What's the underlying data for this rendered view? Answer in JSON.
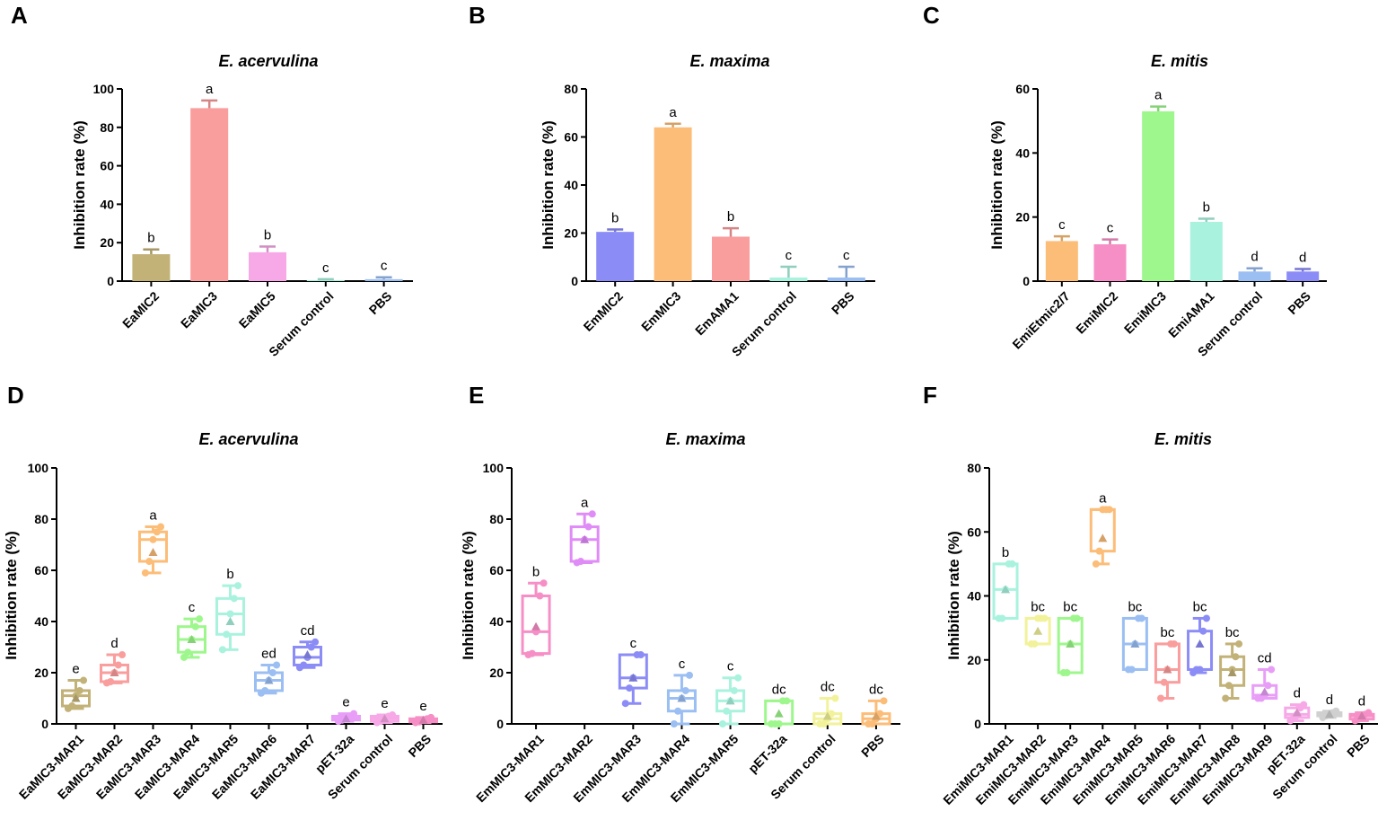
{
  "chart_data": [
    {
      "panel": "A",
      "type": "bar",
      "title": "E. acervulina",
      "ylabel": "Inhibition rate (%)",
      "ylim": [
        0,
        100
      ],
      "yticks": [
        0,
        20,
        40,
        60,
        80,
        100
      ],
      "categories": [
        "EaMIC2",
        "EaMIC3",
        "EaMIC5",
        "Serum control",
        "PBS"
      ],
      "values": [
        14,
        90,
        15,
        0.5,
        1
      ],
      "errors": [
        2.5,
        4,
        3,
        0.5,
        1
      ],
      "letters": [
        "b",
        "a",
        "b",
        "c",
        "c"
      ],
      "colors": [
        "#c2b278",
        "#fa9d9d",
        "#f7a8e6",
        "#a9f2de",
        "#9bbff2"
      ]
    },
    {
      "panel": "B",
      "type": "bar",
      "title": "E. maxima",
      "ylabel": "Inhibition rate (%)",
      "ylim": [
        0,
        80
      ],
      "yticks": [
        0,
        20,
        40,
        60,
        80
      ],
      "categories": [
        "EmMIC2",
        "EmMIC3",
        "EmAMA1",
        "Serum control",
        "PBS"
      ],
      "values": [
        20.5,
        64,
        18.5,
        1.5,
        1.5
      ],
      "errors": [
        1,
        1.5,
        3.5,
        4.5,
        4.5
      ],
      "letters": [
        "b",
        "a",
        "b",
        "c",
        "c"
      ],
      "colors": [
        "#8c8cf7",
        "#fcbd78",
        "#fa9d9d",
        "#a9f2de",
        "#9bbff2"
      ]
    },
    {
      "panel": "C",
      "type": "bar",
      "title": "E. mitis",
      "ylabel": "Inhibition rate (%)",
      "ylim": [
        0,
        60
      ],
      "yticks": [
        0,
        20,
        40,
        60
      ],
      "categories": [
        "EmiEtmic2/7",
        "EmiMIC2",
        "EmiMIC3",
        "EmiAMA1",
        "Serum control",
        "PBS"
      ],
      "values": [
        12.5,
        11.5,
        53,
        18.5,
        3,
        3
      ],
      "errors": [
        1.5,
        1.5,
        1.5,
        1,
        1,
        0.8
      ],
      "letters": [
        "c",
        "c",
        "a",
        "b",
        "d",
        "d"
      ],
      "colors": [
        "#fcbd78",
        "#f78fc7",
        "#9ef78c",
        "#a9f2de",
        "#9bbff2",
        "#8c8cf7"
      ]
    },
    {
      "panel": "D",
      "type": "box",
      "title": "E. acervulina",
      "ylabel": "Inhibition rate (%)",
      "ylim": [
        0,
        100
      ],
      "yticks": [
        0,
        20,
        40,
        60,
        80,
        100
      ],
      "categories": [
        "EaMIC3-MAR1",
        "EaMIC3-MAR2",
        "EaMIC3-MAR3",
        "EaMIC3-MAR4",
        "EaMIC3-MAR5",
        "EaMIC3-MAR6",
        "EaMIC3-MAR7",
        "pET-32a",
        "Serum control",
        "PBS"
      ],
      "boxes": [
        {
          "min": 6,
          "q1": 7,
          "median": 11,
          "q3": 13,
          "max": 17,
          "mean": 10
        },
        {
          "min": 16,
          "q1": 16.5,
          "median": 20,
          "q3": 23,
          "max": 27,
          "mean": 20
        },
        {
          "min": 59,
          "q1": 63.5,
          "median": 72,
          "q3": 75,
          "max": 77,
          "mean": 67
        },
        {
          "min": 26,
          "q1": 28,
          "median": 33,
          "q3": 38,
          "max": 41,
          "mean": 33
        },
        {
          "min": 29,
          "q1": 35,
          "median": 43,
          "q3": 49,
          "max": 54,
          "mean": 40
        },
        {
          "min": 12,
          "q1": 13,
          "median": 17,
          "q3": 20,
          "max": 23,
          "mean": 17
        },
        {
          "min": 22,
          "q1": 23,
          "median": 26,
          "q3": 30,
          "max": 32,
          "mean": 27
        },
        {
          "min": 1,
          "q1": 1.5,
          "median": 2,
          "q3": 3,
          "max": 4,
          "mean": 2
        },
        {
          "min": 0.5,
          "q1": 1,
          "median": 2,
          "q3": 3,
          "max": 3.5,
          "mean": 2
        },
        {
          "min": 0.5,
          "q1": 0.8,
          "median": 1.5,
          "q3": 2,
          "max": 2.5,
          "mean": 1.5
        }
      ],
      "letters": [
        "e",
        "d",
        "a",
        "c",
        "b",
        "ed",
        "cd",
        "e",
        "e",
        "e"
      ],
      "colors": [
        "#c2b278",
        "#fa9d9d",
        "#fcbd78",
        "#9ef78c",
        "#a9f2de",
        "#9bbff2",
        "#8c8cf7",
        "#e89ef7",
        "#f7a8e6",
        "#f78fc7"
      ]
    },
    {
      "panel": "E",
      "type": "box",
      "title": "E. maxima",
      "ylabel": "Inhibition rate (%)",
      "ylim": [
        0,
        100
      ],
      "yticks": [
        0,
        20,
        40,
        60,
        80,
        100
      ],
      "categories": [
        "EmMIC3-MAR1",
        "EmMIC3-MAR2",
        "EmMIC3-MAR3",
        "EmMIC3-MAR4",
        "EmMIC3-MAR5",
        "pET-32a",
        "Serum control",
        "PBS"
      ],
      "boxes": [
        {
          "min": 27,
          "q1": 27.5,
          "median": 36,
          "q3": 50,
          "max": 55,
          "mean": 38
        },
        {
          "min": 63,
          "q1": 63.5,
          "median": 72,
          "q3": 77,
          "max": 82,
          "mean": 72
        },
        {
          "min": 8,
          "q1": 14,
          "median": 18,
          "q3": 27,
          "max": 27,
          "mean": 18
        },
        {
          "min": 0,
          "q1": 5,
          "median": 10,
          "q3": 13,
          "max": 19,
          "mean": 10
        },
        {
          "min": 0,
          "q1": 5,
          "median": 9,
          "q3": 13,
          "max": 18,
          "mean": 9
        },
        {
          "min": 0,
          "q1": 0,
          "median": 0,
          "q3": 9,
          "max": 9,
          "mean": 4
        },
        {
          "min": 0,
          "q1": 0,
          "median": 2,
          "q3": 4,
          "max": 10,
          "mean": 3
        },
        {
          "min": 0,
          "q1": 0,
          "median": 2,
          "q3": 4,
          "max": 9,
          "mean": 3
        }
      ],
      "letters": [
        "b",
        "a",
        "c",
        "c",
        "c",
        "dc",
        "dc",
        "dc"
      ],
      "colors": [
        "#f78fc7",
        "#e08cf7",
        "#8c8cf7",
        "#9bbff2",
        "#a9f2de",
        "#9ef78c",
        "#f2f29b",
        "#fcbd78"
      ]
    },
    {
      "panel": "F",
      "type": "box",
      "title": "E. mitis",
      "ylabel": "Inhibition rate (%)",
      "ylim": [
        0,
        80
      ],
      "yticks": [
        0,
        20,
        40,
        60,
        80
      ],
      "categories": [
        "EmiMIC3-MAR1",
        "EmiMIC3-MAR2",
        "EmiMIC3-MAR3",
        "EmiMIC3-MAR4",
        "EmiMIC3-MAR5",
        "EmiMIC3-MAR6",
        "EmiMIC3-MAR7",
        "EmiMIC3-MAR8",
        "EmiMIC3-MAR9",
        "pET-32a",
        "Serum control",
        "PBS"
      ],
      "boxes": [
        {
          "min": 33,
          "q1": 33,
          "median": 42,
          "q3": 50,
          "max": 50,
          "mean": 42
        },
        {
          "min": 25,
          "q1": 25,
          "median": 33,
          "q3": 33,
          "max": 33,
          "mean": 29
        },
        {
          "min": 16,
          "q1": 16,
          "median": 25,
          "q3": 33,
          "max": 33,
          "mean": 25
        },
        {
          "min": 50,
          "q1": 54,
          "median": 67,
          "q3": 67,
          "max": 67,
          "mean": 58
        },
        {
          "min": 17,
          "q1": 17,
          "median": 25,
          "q3": 33,
          "max": 33,
          "mean": 25
        },
        {
          "min": 8,
          "q1": 13,
          "median": 17,
          "q3": 25,
          "max": 25,
          "mean": 17
        },
        {
          "min": 16,
          "q1": 17,
          "median": 17,
          "q3": 29,
          "max": 33,
          "mean": 25
        },
        {
          "min": 8,
          "q1": 12,
          "median": 17,
          "q3": 21,
          "max": 25,
          "mean": 16
        },
        {
          "min": 8,
          "q1": 8,
          "median": 9,
          "q3": 12,
          "max": 17,
          "mean": 10
        },
        {
          "min": 1,
          "q1": 2,
          "median": 3,
          "q3": 5,
          "max": 6,
          "mean": 3.5
        },
        {
          "min": 2,
          "q1": 2.5,
          "median": 3,
          "q3": 3.5,
          "max": 4,
          "mean": 3
        },
        {
          "min": 1,
          "q1": 1.5,
          "median": 2.5,
          "q3": 3,
          "max": 3.5,
          "mean": 2.5
        }
      ],
      "letters": [
        "b",
        "bc",
        "bc",
        "a",
        "bc",
        "bc",
        "bc",
        "bc",
        "cd",
        "d",
        "d",
        "d"
      ],
      "colors": [
        "#a9f2de",
        "#f2f29b",
        "#9ef78c",
        "#fcbd78",
        "#9bbff2",
        "#fa9d9d",
        "#8c8cf7",
        "#c2b278",
        "#e89ef7",
        "#f7a8e6",
        "#d0d0d0",
        "#f78fc7"
      ]
    }
  ]
}
